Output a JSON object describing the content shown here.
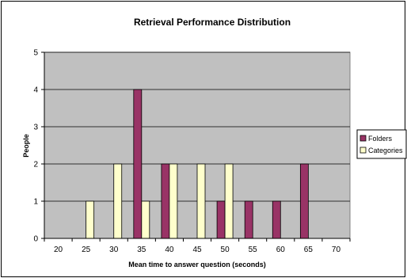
{
  "chart_data": {
    "type": "bar",
    "title": "Retrieval Performance Distribution",
    "xlabel": "Mean time to answer question (seconds)",
    "ylabel": "People",
    "categories": [
      "20",
      "25",
      "30",
      "35",
      "40",
      "45",
      "50",
      "55",
      "60",
      "65",
      "70"
    ],
    "ylim": [
      0,
      5
    ],
    "yticks": [
      "0",
      "1",
      "2",
      "3",
      "4",
      "5"
    ],
    "grid": true,
    "legend_position": "right",
    "series": [
      {
        "name": "Folders",
        "values": [
          0,
          0,
          0,
          4,
          2,
          0,
          1,
          1,
          1,
          2,
          0
        ],
        "color": "#993366"
      },
      {
        "name": "Categories",
        "values": [
          0,
          1,
          2,
          1,
          2,
          2,
          2,
          0,
          0,
          0,
          0
        ],
        "color": "#FFFFCC"
      }
    ],
    "plot_background": "#C0C0C0"
  }
}
